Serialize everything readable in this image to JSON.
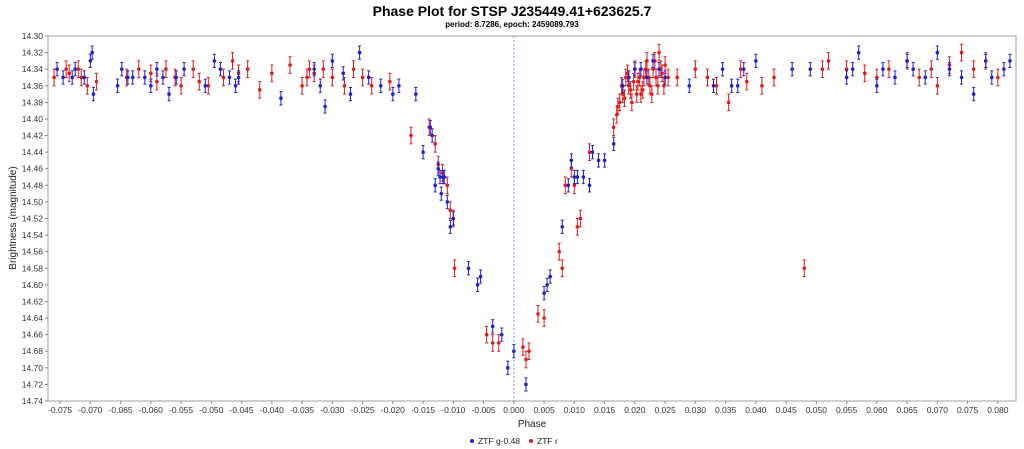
{
  "chart_data": {
    "type": "scatter",
    "title": "Phase Plot for STSP J235449.41+623625.7",
    "subtitle": "period: 8.7286, epoch: 2459089.793",
    "xlabel": "Phase",
    "ylabel": "Brightness (magnitude)",
    "xlim": [
      -0.077,
      0.083
    ],
    "ylim": [
      14.74,
      14.3
    ],
    "y_inverted": true,
    "x_ticks": [
      -0.075,
      -0.07,
      -0.065,
      -0.06,
      -0.055,
      -0.05,
      -0.045,
      -0.04,
      -0.035,
      -0.03,
      -0.025,
      -0.02,
      -0.015,
      -0.01,
      -0.005,
      0.0,
      0.005,
      0.01,
      0.015,
      0.02,
      0.025,
      0.03,
      0.035,
      0.04,
      0.045,
      0.05,
      0.055,
      0.06,
      0.065,
      0.07,
      0.075,
      0.08
    ],
    "x_tick_labels": [
      "-0.075",
      "-0.070",
      "-0.065",
      "-0.060",
      "-0.055",
      "-0.050",
      "-0.045",
      "-0.040",
      "-0.035",
      "-0.030",
      "-0.025",
      "-0.020",
      "-0.015",
      "-0.010",
      "-0.005",
      "0.000",
      "0.005",
      "0.010",
      "0.015",
      "0.020",
      "0.025",
      "0.030",
      "0.035",
      "0.040",
      "0.045",
      "0.050",
      "0.055",
      "0.060",
      "0.065",
      "0.070",
      "0.075",
      "0.080"
    ],
    "y_ticks": [
      14.3,
      14.32,
      14.34,
      14.36,
      14.38,
      14.4,
      14.42,
      14.44,
      14.46,
      14.48,
      14.5,
      14.52,
      14.54,
      14.56,
      14.58,
      14.6,
      14.62,
      14.64,
      14.66,
      14.68,
      14.7,
      14.72,
      14.74
    ],
    "y_tick_labels": [
      "14.30",
      "14.32",
      "14.34",
      "14.36",
      "14.38",
      "14.40",
      "14.42",
      "14.44",
      "14.46",
      "14.48",
      "14.50",
      "14.52",
      "14.54",
      "14.56",
      "14.58",
      "14.60",
      "14.62",
      "14.64",
      "14.66",
      "14.68",
      "14.70",
      "14.72",
      "14.74"
    ],
    "reference_line_x": 0.0,
    "grid": false,
    "legend_position": "bottom-center",
    "series": [
      {
        "name": "ZTF g-0.48",
        "color": "#1f1fd6",
        "error": 0.008,
        "points": [
          [
            -0.0755,
            14.34
          ],
          [
            -0.0745,
            14.35
          ],
          [
            -0.073,
            14.35
          ],
          [
            -0.0725,
            14.34
          ],
          [
            -0.071,
            14.35
          ],
          [
            -0.07,
            14.33
          ],
          [
            -0.0697,
            14.32
          ],
          [
            -0.0695,
            14.37
          ],
          [
            -0.0655,
            14.36
          ],
          [
            -0.0648,
            14.34
          ],
          [
            -0.0638,
            14.35
          ],
          [
            -0.063,
            14.35
          ],
          [
            -0.061,
            14.35
          ],
          [
            -0.06,
            14.36
          ],
          [
            -0.059,
            14.34
          ],
          [
            -0.058,
            14.35
          ],
          [
            -0.057,
            14.37
          ],
          [
            -0.0558,
            14.35
          ],
          [
            -0.0545,
            14.34
          ],
          [
            -0.051,
            14.36
          ],
          [
            -0.0495,
            14.33
          ],
          [
            -0.0485,
            14.34
          ],
          [
            -0.047,
            14.35
          ],
          [
            -0.046,
            14.36
          ],
          [
            -0.0455,
            14.35
          ],
          [
            -0.0385,
            14.375
          ],
          [
            -0.033,
            14.34
          ],
          [
            -0.032,
            14.36
          ],
          [
            -0.0312,
            14.385
          ],
          [
            -0.03,
            14.33
          ],
          [
            -0.0282,
            14.345
          ],
          [
            -0.027,
            14.37
          ],
          [
            -0.0255,
            14.32
          ],
          [
            -0.024,
            14.35
          ],
          [
            -0.022,
            14.36
          ],
          [
            -0.02,
            14.37
          ],
          [
            -0.019,
            14.36
          ],
          [
            -0.0162,
            14.37
          ],
          [
            -0.015,
            14.44
          ],
          [
            -0.0138,
            14.41
          ],
          [
            -0.0135,
            14.42
          ],
          [
            -0.013,
            14.48
          ],
          [
            -0.0125,
            14.46
          ],
          [
            -0.0122,
            14.47
          ],
          [
            -0.012,
            14.49
          ],
          [
            -0.0117,
            14.47
          ],
          [
            -0.0115,
            14.47
          ],
          [
            -0.011,
            14.5
          ],
          [
            -0.0105,
            14.53
          ],
          [
            -0.01,
            14.52
          ],
          [
            -0.0075,
            14.58
          ],
          [
            -0.006,
            14.6
          ],
          [
            -0.0055,
            14.59
          ],
          [
            -0.0035,
            14.65
          ],
          [
            -0.002,
            14.66
          ],
          [
            -0.001,
            14.7
          ],
          [
            0.0,
            14.68
          ],
          [
            0.002,
            14.72
          ],
          [
            0.005,
            14.61
          ],
          [
            0.0055,
            14.6
          ],
          [
            0.006,
            14.59
          ],
          [
            0.008,
            14.53
          ],
          [
            0.009,
            14.48
          ],
          [
            0.0095,
            14.45
          ],
          [
            0.01,
            14.47
          ],
          [
            0.0105,
            14.47
          ],
          [
            0.0115,
            14.47
          ],
          [
            0.0125,
            14.48
          ],
          [
            0.013,
            14.44
          ],
          [
            0.014,
            14.45
          ],
          [
            0.015,
            14.45
          ],
          [
            0.0165,
            14.43
          ],
          [
            0.018,
            14.36
          ],
          [
            0.019,
            14.35
          ],
          [
            0.02,
            14.34
          ],
          [
            0.021,
            14.34
          ],
          [
            0.022,
            14.35
          ],
          [
            0.023,
            14.33
          ],
          [
            0.024,
            14.34
          ],
          [
            0.025,
            14.35
          ],
          [
            0.029,
            14.36
          ],
          [
            0.033,
            14.36
          ],
          [
            0.0345,
            14.34
          ],
          [
            0.036,
            14.36
          ],
          [
            0.037,
            14.36
          ],
          [
            0.038,
            14.34
          ],
          [
            0.04,
            14.33
          ],
          [
            0.046,
            14.34
          ],
          [
            0.049,
            14.34
          ],
          [
            0.055,
            14.35
          ],
          [
            0.056,
            14.34
          ],
          [
            0.057,
            14.32
          ],
          [
            0.06,
            14.36
          ],
          [
            0.061,
            14.34
          ],
          [
            0.063,
            14.35
          ],
          [
            0.065,
            14.33
          ],
          [
            0.066,
            14.34
          ],
          [
            0.068,
            14.35
          ],
          [
            0.07,
            14.32
          ],
          [
            0.072,
            14.34
          ],
          [
            0.074,
            14.35
          ],
          [
            0.076,
            14.37
          ],
          [
            0.078,
            14.33
          ],
          [
            0.079,
            14.35
          ],
          [
            0.081,
            14.34
          ],
          [
            0.082,
            14.33
          ]
        ]
      },
      {
        "name": "ZTF r",
        "color": "#e01b1b",
        "error": 0.01,
        "points": [
          [
            -0.076,
            14.35
          ],
          [
            -0.074,
            14.34
          ],
          [
            -0.0735,
            14.345
          ],
          [
            -0.072,
            14.34
          ],
          [
            -0.0715,
            14.35
          ],
          [
            -0.0705,
            14.36
          ],
          [
            -0.069,
            14.355
          ],
          [
            -0.064,
            14.35
          ],
          [
            -0.062,
            14.34
          ],
          [
            -0.06,
            14.345
          ],
          [
            -0.059,
            14.355
          ],
          [
            -0.0575,
            14.34
          ],
          [
            -0.056,
            14.35
          ],
          [
            -0.055,
            14.36
          ],
          [
            -0.053,
            14.34
          ],
          [
            -0.052,
            14.355
          ],
          [
            -0.0505,
            14.36
          ],
          [
            -0.048,
            14.35
          ],
          [
            -0.0465,
            14.33
          ],
          [
            -0.0455,
            14.345
          ],
          [
            -0.044,
            14.34
          ],
          [
            -0.042,
            14.365
          ],
          [
            -0.04,
            14.345
          ],
          [
            -0.037,
            14.335
          ],
          [
            -0.035,
            14.36
          ],
          [
            -0.0342,
            14.35
          ],
          [
            -0.0338,
            14.34
          ],
          [
            -0.033,
            14.345
          ],
          [
            -0.0315,
            14.34
          ],
          [
            -0.03,
            14.35
          ],
          [
            -0.028,
            14.36
          ],
          [
            -0.0265,
            14.34
          ],
          [
            -0.025,
            14.35
          ],
          [
            -0.0235,
            14.36
          ],
          [
            -0.0205,
            14.355
          ],
          [
            -0.017,
            14.42
          ],
          [
            -0.014,
            14.41
          ],
          [
            -0.013,
            14.43
          ],
          [
            -0.0125,
            14.455
          ],
          [
            -0.0118,
            14.465
          ],
          [
            -0.011,
            14.48
          ],
          [
            -0.0105,
            14.51
          ],
          [
            -0.01,
            14.52
          ],
          [
            -0.0098,
            14.58
          ],
          [
            -0.0045,
            14.66
          ],
          [
            -0.0035,
            14.67
          ],
          [
            -0.0025,
            14.67
          ],
          [
            0.0015,
            14.675
          ],
          [
            0.002,
            14.69
          ],
          [
            0.0025,
            14.68
          ],
          [
            0.004,
            14.635
          ],
          [
            0.005,
            14.64
          ],
          [
            0.0075,
            14.56
          ],
          [
            0.008,
            14.58
          ],
          [
            0.0085,
            14.48
          ],
          [
            0.0095,
            14.46
          ],
          [
            0.01,
            14.48
          ],
          [
            0.0105,
            14.53
          ],
          [
            0.011,
            14.52
          ],
          [
            0.0125,
            14.44
          ],
          [
            0.0165,
            14.41
          ],
          [
            0.017,
            14.395
          ],
          [
            0.0175,
            14.38
          ],
          [
            0.018,
            14.37
          ],
          [
            0.0185,
            14.35
          ],
          [
            0.019,
            14.36
          ],
          [
            0.0195,
            14.38
          ],
          [
            0.02,
            14.34
          ],
          [
            0.0205,
            14.355
          ],
          [
            0.021,
            14.37
          ],
          [
            0.0215,
            14.35
          ],
          [
            0.022,
            14.33
          ],
          [
            0.0225,
            14.36
          ],
          [
            0.023,
            14.34
          ],
          [
            0.0235,
            14.35
          ],
          [
            0.024,
            14.32
          ],
          [
            0.0245,
            14.345
          ],
          [
            0.025,
            14.335
          ],
          [
            0.0255,
            14.35
          ],
          [
            0.0172,
            14.385
          ],
          [
            0.0178,
            14.36
          ],
          [
            0.0183,
            14.375
          ],
          [
            0.0188,
            14.345
          ],
          [
            0.0193,
            14.365
          ],
          [
            0.0198,
            14.355
          ],
          [
            0.0203,
            14.37
          ],
          [
            0.0208,
            14.35
          ],
          [
            0.0213,
            14.365
          ],
          [
            0.0218,
            14.34
          ],
          [
            0.0223,
            14.35
          ],
          [
            0.0228,
            14.37
          ],
          [
            0.0233,
            14.33
          ],
          [
            0.0238,
            14.36
          ],
          [
            0.0243,
            14.34
          ],
          [
            0.0248,
            14.36
          ],
          [
            0.027,
            14.35
          ],
          [
            0.03,
            14.34
          ],
          [
            0.032,
            14.35
          ],
          [
            0.0335,
            14.36
          ],
          [
            0.0355,
            14.38
          ],
          [
            0.0375,
            14.34
          ],
          [
            0.0385,
            14.355
          ],
          [
            0.041,
            14.36
          ],
          [
            0.043,
            14.35
          ],
          [
            0.048,
            14.58
          ],
          [
            0.051,
            14.34
          ],
          [
            0.052,
            14.33
          ],
          [
            0.055,
            14.34
          ],
          [
            0.058,
            14.345
          ],
          [
            0.06,
            14.35
          ],
          [
            0.062,
            14.34
          ],
          [
            0.065,
            14.33
          ],
          [
            0.067,
            14.35
          ],
          [
            0.069,
            14.34
          ],
          [
            0.07,
            14.36
          ],
          [
            0.072,
            14.335
          ],
          [
            0.074,
            14.32
          ],
          [
            0.076,
            14.34
          ],
          [
            0.078,
            14.33
          ],
          [
            0.08,
            14.35
          ]
        ]
      }
    ]
  }
}
